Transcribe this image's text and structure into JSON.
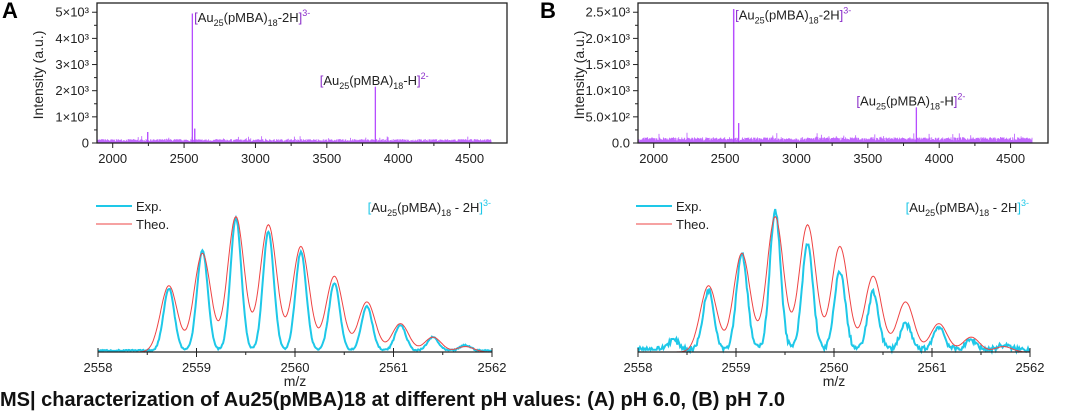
{
  "figure": {
    "caption_partial": "MS| characterization of Au25(pMBA)18 at different pH values: (A) pH 6.0, (B) pH 7.0"
  },
  "colors": {
    "spectrum": "#b64dff",
    "bracket": "#8b2fc9",
    "exp": "#1ec8e8",
    "theo": "#ee4444",
    "axis": "#222222"
  },
  "chart_data": [
    {
      "id": "A-top",
      "panel_label": "A",
      "type": "line",
      "title": "",
      "xlabel": "",
      "ylabel": "Intensity (a.u.)",
      "xlim": [
        1890,
        4650
      ],
      "ylim": [
        0,
        5200
      ],
      "xticks": [
        2000,
        2500,
        3000,
        3500,
        4000,
        4500
      ],
      "xtick_labels": [
        "2000",
        "2500",
        "3000",
        "3500",
        "4000",
        "4500"
      ],
      "yticks": [
        0,
        1000,
        2000,
        3000,
        4000,
        5000
      ],
      "ytick_labels": [
        "0",
        "1×10³",
        "2×10³",
        "3×10³",
        "4×10³",
        "5×10³"
      ],
      "baseline_noise": 150,
      "peaks": [
        {
          "x": 2245,
          "y": 420
        },
        {
          "x": 2558,
          "y": 4950
        },
        {
          "x": 2575,
          "y": 550
        },
        {
          "x": 3840,
          "y": 2150
        }
      ],
      "annotations": [
        {
          "text_main": "Au",
          "sub1": "25",
          "mid": "(pMBA)",
          "sub2": "18",
          "tail": "-2H",
          "charge": "3-",
          "x": 2570,
          "y": 4850
        },
        {
          "text_main": "Au",
          "sub1": "25",
          "mid": "(pMBA)",
          "sub2": "18",
          "tail": "-H",
          "charge": "2-",
          "x": 3450,
          "y": 2450
        }
      ]
    },
    {
      "id": "B-top",
      "panel_label": "B",
      "type": "line",
      "title": "",
      "xlabel": "",
      "ylabel": "Intensity (a.u.)",
      "xlim": [
        1890,
        4650
      ],
      "ylim": [
        0,
        2600
      ],
      "xticks": [
        2000,
        2500,
        3000,
        3500,
        4000,
        4500
      ],
      "xtick_labels": [
        "2000",
        "2500",
        "3000",
        "3500",
        "4000",
        "4500"
      ],
      "yticks": [
        0,
        500,
        1000,
        1500,
        2000,
        2500
      ],
      "ytick_labels": [
        "0.0",
        "5.0×10²",
        "1.0×10³",
        "1.5×10³",
        "2.0×10³",
        "2.5×10³"
      ],
      "baseline_noise": 110,
      "peaks": [
        {
          "x": 2560,
          "y": 2560
        },
        {
          "x": 2595,
          "y": 380
        },
        {
          "x": 3840,
          "y": 680
        }
      ],
      "annotations": [
        {
          "text_main": "Au",
          "sub1": "25",
          "mid": "(pMBA)",
          "sub2": "18",
          "tail": "-2H",
          "charge": "3-",
          "x": 2570,
          "y": 2480
        },
        {
          "text_main": "Au",
          "sub1": "25",
          "mid": "(pMBA)",
          "sub2": "18",
          "tail": "-H",
          "charge": "2-",
          "x": 3420,
          "y": 830
        }
      ]
    },
    {
      "id": "A-bottom",
      "type": "line",
      "title": "",
      "xlabel": "m/z",
      "ylabel": "",
      "xlim": [
        2558,
        2562
      ],
      "ylim": [
        0,
        1.05
      ],
      "xticks": [
        2558,
        2559,
        2560,
        2561,
        2562
      ],
      "xtick_labels": [
        "2558",
        "2559",
        "2560",
        "2561",
        "2562"
      ],
      "legend": {
        "position": "top-left",
        "entries": [
          "Exp.",
          "Theo."
        ]
      },
      "annotation": {
        "text_main": "Au",
        "sub1": "25",
        "mid": "(pMBA)",
        "sub2": "18",
        "tail": " - 2H",
        "charge": "3-"
      },
      "series": [
        {
          "name": "Theo.",
          "peaks_x": [
            2558.72,
            2559.06,
            2559.4,
            2559.73,
            2560.06,
            2560.4,
            2560.73,
            2561.07,
            2561.4,
            2561.73
          ],
          "peaks_y": [
            0.49,
            0.73,
            1.0,
            0.94,
            0.78,
            0.56,
            0.37,
            0.21,
            0.11,
            0.04
          ],
          "baseline": 0
        },
        {
          "name": "Exp.",
          "peaks_x": [
            2558.72,
            2559.06,
            2559.4,
            2559.73,
            2560.06,
            2560.4,
            2560.73,
            2561.07,
            2561.4,
            2561.73
          ],
          "peaks_y": [
            0.46,
            0.74,
            0.98,
            0.88,
            0.73,
            0.5,
            0.33,
            0.19,
            0.1,
            0.04
          ],
          "baseline": 0.01
        }
      ]
    },
    {
      "id": "B-bottom",
      "type": "line",
      "title": "",
      "xlabel": "m/z",
      "ylabel": "",
      "xlim": [
        2558,
        2562
      ],
      "ylim": [
        0,
        1.05
      ],
      "xticks": [
        2558,
        2559,
        2560,
        2561,
        2562
      ],
      "xtick_labels": [
        "2558",
        "2559",
        "2560",
        "2561",
        "2562"
      ],
      "legend": {
        "position": "top-left",
        "entries": [
          "Exp.",
          "Theo."
        ]
      },
      "annotation": {
        "text_main": "Au",
        "sub1": "25",
        "mid": "(pMBA)",
        "sub2": "18",
        "tail": " - 2H",
        "charge": "3-"
      },
      "series": [
        {
          "name": "Theo.",
          "peaks_x": [
            2558.72,
            2559.06,
            2559.4,
            2559.73,
            2560.06,
            2560.4,
            2560.73,
            2561.07,
            2561.4,
            2561.73
          ],
          "peaks_y": [
            0.49,
            0.73,
            1.0,
            0.94,
            0.78,
            0.56,
            0.37,
            0.21,
            0.11,
            0.04
          ],
          "baseline": 0
        },
        {
          "name": "Exp.",
          "peaks_x": [
            2558.36,
            2558.72,
            2559.06,
            2559.4,
            2559.73,
            2560.06,
            2560.4,
            2560.73,
            2561.07,
            2561.4,
            2561.73
          ],
          "peaks_y": [
            0.07,
            0.44,
            0.71,
            1.02,
            0.78,
            0.58,
            0.42,
            0.19,
            0.17,
            0.07,
            0.03
          ],
          "baseline": 0.02
        }
      ]
    }
  ]
}
